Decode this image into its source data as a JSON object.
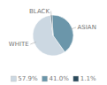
{
  "chart_data": {
    "type": "pie",
    "categories": [
      "WHITE",
      "ASIAN",
      "BLACK"
    ],
    "values": [
      57.9,
      41.0,
      1.1
    ],
    "value_labels": [
      "57.9%",
      "41.0%",
      "1.1%"
    ],
    "colors": [
      "#ccd8e2",
      "#6b96aa",
      "#2b4a5c"
    ],
    "legend": "bottom"
  }
}
